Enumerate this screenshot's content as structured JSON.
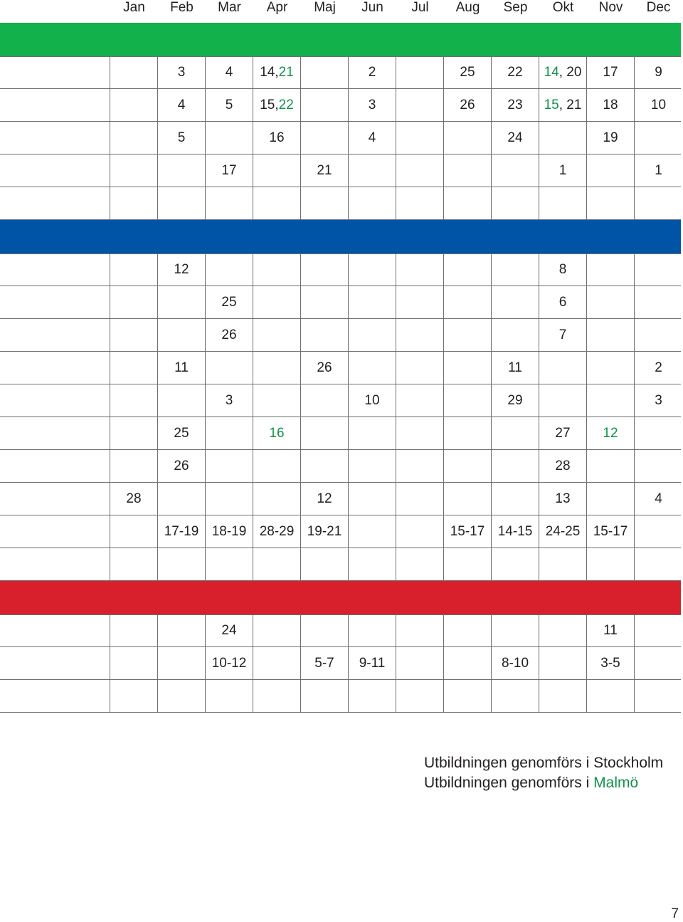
{
  "months": [
    "Jan",
    "Feb",
    "Mar",
    "Apr",
    "Maj",
    "Jun",
    "Jul",
    "Aug",
    "Sep",
    "Okt",
    "Nov",
    "Dec"
  ],
  "colors": {
    "green": "#13b14b",
    "blue": "#0054a6",
    "red": "#d7202c",
    "malmo_text": "#12924a",
    "grid": "#6d6e71"
  },
  "sections": [
    {
      "color": "#13b14b",
      "rows": [
        [
          [],
          [
            {
              "t": "3"
            }
          ],
          [
            {
              "t": "4"
            }
          ],
          [
            {
              "t": "14, "
            },
            {
              "t": "21",
              "g": true
            }
          ],
          [],
          [
            {
              "t": "2"
            }
          ],
          [],
          [
            {
              "t": "25"
            }
          ],
          [
            {
              "t": "22"
            }
          ],
          [
            {
              "t": "14",
              "g": true
            },
            {
              "t": ", 20"
            }
          ],
          [
            {
              "t": "17"
            }
          ],
          [
            {
              "t": "9"
            }
          ]
        ],
        [
          [],
          [
            {
              "t": "4"
            }
          ],
          [
            {
              "t": "5"
            }
          ],
          [
            {
              "t": "15, "
            },
            {
              "t": "22",
              "g": true
            }
          ],
          [],
          [
            {
              "t": "3"
            }
          ],
          [],
          [
            {
              "t": "26"
            }
          ],
          [
            {
              "t": "23"
            }
          ],
          [
            {
              "t": "15",
              "g": true
            },
            {
              "t": ", 21"
            }
          ],
          [
            {
              "t": "18"
            }
          ],
          [
            {
              "t": "10"
            }
          ]
        ],
        [
          [],
          [
            {
              "t": "5"
            }
          ],
          [],
          [
            {
              "t": "16"
            }
          ],
          [],
          [
            {
              "t": "4"
            }
          ],
          [],
          [],
          [
            {
              "t": "24"
            }
          ],
          [],
          [
            {
              "t": "19"
            }
          ],
          []
        ],
        [
          [],
          [],
          [
            {
              "t": "17"
            }
          ],
          [],
          [
            {
              "t": "21"
            }
          ],
          [],
          [],
          [],
          [],
          [
            {
              "t": "1"
            }
          ],
          [],
          [
            {
              "t": "1"
            }
          ]
        ],
        [
          [],
          [],
          [],
          [],
          [],
          [],
          [],
          [],
          [],
          [],
          [],
          []
        ]
      ]
    },
    {
      "color": "#0054a6",
      "rows": [
        [
          [],
          [
            {
              "t": "12"
            }
          ],
          [],
          [],
          [],
          [],
          [],
          [],
          [],
          [
            {
              "t": "8"
            }
          ],
          [],
          []
        ],
        [
          [],
          [],
          [
            {
              "t": "25"
            }
          ],
          [],
          [],
          [],
          [],
          [],
          [],
          [
            {
              "t": "6"
            }
          ],
          [],
          []
        ],
        [
          [],
          [],
          [
            {
              "t": "26"
            }
          ],
          [],
          [],
          [],
          [],
          [],
          [],
          [
            {
              "t": "7"
            }
          ],
          [],
          []
        ],
        [
          [],
          [
            {
              "t": "11"
            }
          ],
          [],
          [],
          [
            {
              "t": "26"
            }
          ],
          [],
          [],
          [],
          [
            {
              "t": "11"
            }
          ],
          [],
          [],
          [
            {
              "t": "2"
            }
          ]
        ],
        [
          [],
          [],
          [
            {
              "t": "3"
            }
          ],
          [],
          [],
          [
            {
              "t": "10"
            }
          ],
          [],
          [],
          [
            {
              "t": "29"
            }
          ],
          [],
          [],
          [
            {
              "t": "3"
            }
          ]
        ],
        [
          [],
          [
            {
              "t": "25"
            }
          ],
          [],
          [
            {
              "t": "16",
              "g": true
            }
          ],
          [],
          [],
          [],
          [],
          [],
          [
            {
              "t": "27"
            }
          ],
          [
            {
              "t": "12",
              "g": true
            }
          ],
          []
        ],
        [
          [],
          [
            {
              "t": "26"
            }
          ],
          [],
          [],
          [],
          [],
          [],
          [],
          [],
          [
            {
              "t": "28"
            }
          ],
          [],
          []
        ],
        [
          [
            {
              "t": "28"
            }
          ],
          [],
          [],
          [],
          [
            {
              "t": "12"
            }
          ],
          [],
          [],
          [],
          [],
          [
            {
              "t": "13"
            }
          ],
          [],
          [
            {
              "t": "4"
            }
          ]
        ],
        [
          [],
          [
            {
              "t": "17-19"
            }
          ],
          [
            {
              "t": "18-19"
            }
          ],
          [
            {
              "t": "28-29"
            }
          ],
          [
            {
              "t": "19-21"
            }
          ],
          [],
          [],
          [
            {
              "t": "15-17"
            }
          ],
          [
            {
              "t": "14-15"
            }
          ],
          [
            {
              "t": "24-25"
            }
          ],
          [
            {
              "t": "15-17"
            }
          ],
          []
        ],
        [
          [],
          [],
          [],
          [],
          [],
          [],
          [],
          [],
          [],
          [],
          [],
          []
        ]
      ]
    },
    {
      "color": "#d7202c",
      "rows": [
        [
          [],
          [],
          [
            {
              "t": "24"
            }
          ],
          [],
          [],
          [],
          [],
          [],
          [],
          [],
          [
            {
              "t": "11"
            }
          ],
          []
        ],
        [
          [],
          [],
          [
            {
              "t": "10-12"
            }
          ],
          [],
          [
            {
              "t": "5-7"
            }
          ],
          [
            {
              "t": "9-11"
            }
          ],
          [],
          [],
          [
            {
              "t": "8-10"
            }
          ],
          [],
          [
            {
              "t": "3-5"
            }
          ],
          []
        ],
        [
          [],
          [],
          [],
          [],
          [],
          [],
          [],
          [],
          [],
          [],
          [],
          []
        ]
      ]
    }
  ],
  "legend": {
    "line1": "Utbildningen genomförs i Stockholm",
    "line2_prefix": "Utbildningen genomförs i ",
    "line2_city": "Malmö"
  },
  "page_number": "7"
}
